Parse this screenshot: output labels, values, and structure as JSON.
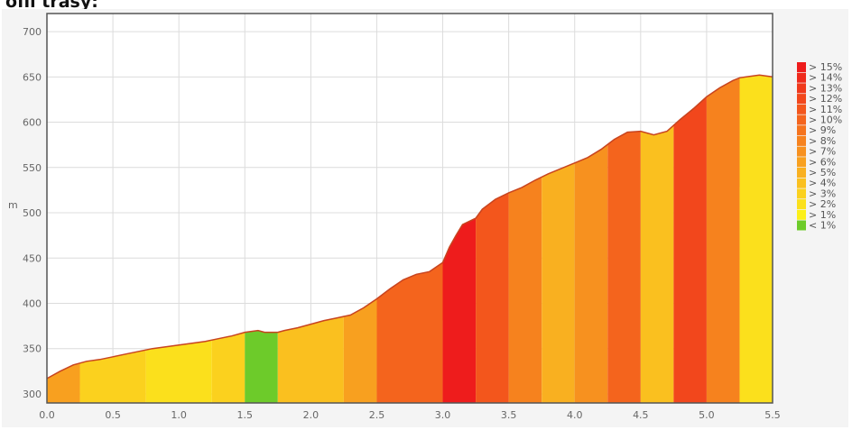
{
  "heading": "ofil trasy:",
  "chart_data": {
    "type": "area",
    "title": "",
    "xlabel": "",
    "ylabel": "m",
    "xlim": [
      0,
      5.5
    ],
    "ylim": [
      290,
      720
    ],
    "x_ticks": [
      "0.0",
      "0.5",
      "1.0",
      "1.5",
      "2.0",
      "2.5",
      "3.0",
      "3.5",
      "4.0",
      "4.5",
      "5.0",
      "5.5"
    ],
    "y_ticks": [
      "300",
      "350",
      "400",
      "450",
      "500",
      "550",
      "600",
      "650",
      "700"
    ],
    "grid": true,
    "legend_position": "right",
    "profile": [
      [
        0.0,
        317
      ],
      [
        0.1,
        325
      ],
      [
        0.2,
        332
      ],
      [
        0.3,
        336
      ],
      [
        0.4,
        338
      ],
      [
        0.5,
        341
      ],
      [
        0.6,
        344
      ],
      [
        0.7,
        347
      ],
      [
        0.8,
        350
      ],
      [
        0.9,
        352
      ],
      [
        1.0,
        354
      ],
      [
        1.1,
        356
      ],
      [
        1.2,
        358
      ],
      [
        1.3,
        361
      ],
      [
        1.4,
        364
      ],
      [
        1.5,
        368
      ],
      [
        1.6,
        370
      ],
      [
        1.65,
        368
      ],
      [
        1.75,
        368
      ],
      [
        1.8,
        370
      ],
      [
        1.9,
        373
      ],
      [
        2.0,
        377
      ],
      [
        2.1,
        381
      ],
      [
        2.2,
        384
      ],
      [
        2.3,
        387
      ],
      [
        2.4,
        395
      ],
      [
        2.5,
        405
      ],
      [
        2.6,
        416
      ],
      [
        2.7,
        426
      ],
      [
        2.8,
        432
      ],
      [
        2.9,
        435
      ],
      [
        3.0,
        445
      ],
      [
        3.05,
        462
      ],
      [
        3.1,
        475
      ],
      [
        3.15,
        487
      ],
      [
        3.25,
        494
      ],
      [
        3.3,
        504
      ],
      [
        3.4,
        515
      ],
      [
        3.5,
        522
      ],
      [
        3.6,
        528
      ],
      [
        3.7,
        536
      ],
      [
        3.8,
        543
      ],
      [
        3.9,
        549
      ],
      [
        4.0,
        555
      ],
      [
        4.1,
        561
      ],
      [
        4.2,
        570
      ],
      [
        4.3,
        581
      ],
      [
        4.4,
        589
      ],
      [
        4.5,
        590
      ],
      [
        4.6,
        586
      ],
      [
        4.7,
        590
      ],
      [
        4.8,
        603
      ],
      [
        4.9,
        615
      ],
      [
        5.0,
        628
      ],
      [
        5.1,
        638
      ],
      [
        5.2,
        646
      ],
      [
        5.25,
        649
      ],
      [
        5.3,
        650
      ],
      [
        5.4,
        652
      ],
      [
        5.5,
        650
      ]
    ],
    "segments": [
      {
        "from": 0.0,
        "to": 0.25,
        "grade": "> 6%"
      },
      {
        "from": 0.25,
        "to": 0.75,
        "grade": "> 3%"
      },
      {
        "from": 0.75,
        "to": 1.25,
        "grade": "> 2%"
      },
      {
        "from": 1.25,
        "to": 1.5,
        "grade": "> 3%"
      },
      {
        "from": 1.5,
        "to": 1.75,
        "grade": "< 1%"
      },
      {
        "from": 1.75,
        "to": 2.25,
        "grade": "> 4%"
      },
      {
        "from": 2.25,
        "to": 2.5,
        "grade": "> 6%"
      },
      {
        "from": 2.5,
        "to": 3.0,
        "grade": "> 10%"
      },
      {
        "from": 3.0,
        "to": 3.25,
        "grade": "> 15%"
      },
      {
        "from": 3.25,
        "to": 3.5,
        "grade": "> 11%"
      },
      {
        "from": 3.5,
        "to": 3.75,
        "grade": "> 8%"
      },
      {
        "from": 3.75,
        "to": 4.0,
        "grade": "> 5%"
      },
      {
        "from": 4.0,
        "to": 4.25,
        "grade": "> 7%"
      },
      {
        "from": 4.25,
        "to": 4.5,
        "grade": "> 10%"
      },
      {
        "from": 4.5,
        "to": 4.75,
        "grade": "> 4%"
      },
      {
        "from": 4.75,
        "to": 5.0,
        "grade": "> 12%"
      },
      {
        "from": 5.0,
        "to": 5.25,
        "grade": "> 8%"
      },
      {
        "from": 5.25,
        "to": 5.5,
        "grade": "> 2%"
      }
    ],
    "legend": [
      {
        "label": "> 15%",
        "color": "#ee1c1c"
      },
      {
        "label": "> 14%",
        "color": "#ef2a1c"
      },
      {
        "label": "> 13%",
        "color": "#f0391c"
      },
      {
        "label": "> 12%",
        "color": "#f2471c"
      },
      {
        "label": "> 11%",
        "color": "#f3561c"
      },
      {
        "label": "> 10%",
        "color": "#f4641d"
      },
      {
        "label": "> 9%",
        "color": "#f5731d"
      },
      {
        "label": "> 8%",
        "color": "#f6821e"
      },
      {
        "label": "> 7%",
        "color": "#f7911f"
      },
      {
        "label": "> 6%",
        "color": "#f8a01f"
      },
      {
        "label": "> 5%",
        "color": "#f9b020"
      },
      {
        "label": "> 4%",
        "color": "#fac01f"
      },
      {
        "label": "> 3%",
        "color": "#fbd11e"
      },
      {
        "label": "> 2%",
        "color": "#fbe01c"
      },
      {
        "label": "> 1%",
        "color": "#fcf019"
      },
      {
        "label": "< 1%",
        "color": "#6dcb2a"
      }
    ]
  }
}
